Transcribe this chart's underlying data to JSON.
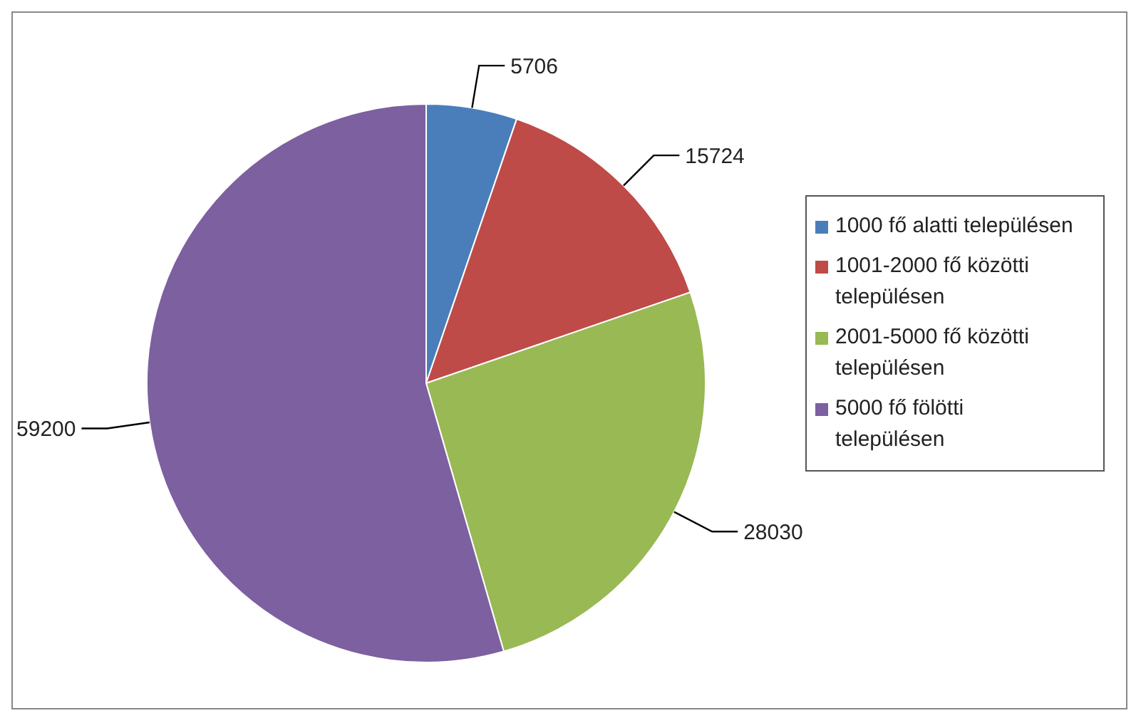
{
  "chart_data": {
    "type": "pie",
    "categories": [
      "1000 fő alatti településen",
      "1001-2000 fő közötti településen",
      "2001-5000 fő közötti településen",
      "5000 fő fölötti településen"
    ],
    "values": [
      5706,
      15724,
      28030,
      59200
    ],
    "colors": [
      "#4a7ebb",
      "#be4b48",
      "#98b954",
      "#7d60a0"
    ],
    "data_labels": true,
    "legend": "right"
  }
}
